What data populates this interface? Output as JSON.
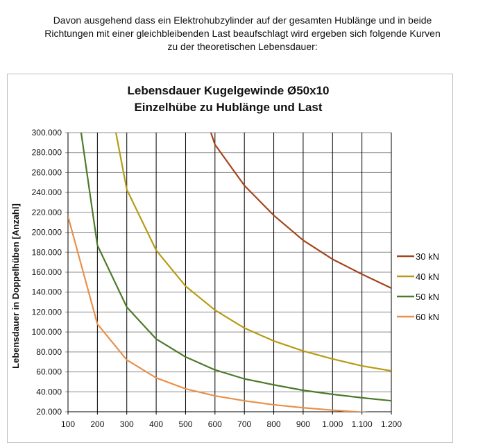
{
  "intro": {
    "lines": [
      "Davon ausgehend dass ein Elektrohubzylinder auf der gesamten Hublänge und in beide",
      "Richtungen mit einer gleichbleibenden Last beaufschlagt wird ergeben sich folgende Kurven",
      "zu der theoretischen Lebensdauer:"
    ]
  },
  "chart_data": {
    "type": "line",
    "title": [
      "Lebensdauer Kugelgewinde Ø50x10",
      "Einzelhübe zu Hublänge und Last"
    ],
    "ylabel": "Lebensdauer in Doppelhüben [Anzahl]",
    "xlabel": "",
    "xlim": [
      100,
      1200
    ],
    "ylim": [
      20000,
      300000
    ],
    "x_ticks": [
      100,
      200,
      300,
      400,
      500,
      600,
      700,
      800,
      900,
      1000,
      1100,
      1200
    ],
    "x_tick_labels": [
      "100",
      "200",
      "300",
      "400",
      "500",
      "600",
      "700",
      "800",
      "900",
      "1.000",
      "1.100",
      "1.200"
    ],
    "y_ticks": [
      20000,
      40000,
      60000,
      80000,
      100000,
      120000,
      140000,
      160000,
      180000,
      200000,
      220000,
      240000,
      260000,
      280000,
      300000
    ],
    "y_tick_labels": [
      "20.000",
      "40.000",
      "60.000",
      "80.000",
      "100.000",
      "120.000",
      "140.000",
      "160.000",
      "180.000",
      "200.000",
      "220.000",
      "240.000",
      "260.000",
      "280.000",
      "300.000"
    ],
    "grid": "vertical and horizontal",
    "legend_position": "right",
    "series": [
      {
        "name": "30 kN",
        "color": "#a3451c",
        "x": [
          600,
          700,
          800,
          900,
          1000,
          1100,
          1200
        ],
        "values": [
          288000,
          247000,
          217000,
          192000,
          173000,
          158000,
          144000
        ]
      },
      {
        "name": "40 kN",
        "color": "#b79b12",
        "x": [
          300,
          400,
          500,
          600,
          700,
          800,
          900,
          1000,
          1100,
          1200
        ],
        "values": [
          243000,
          182000,
          146000,
          122000,
          104000,
          91000,
          81000,
          73000,
          66000,
          61000
        ]
      },
      {
        "name": "50 kN",
        "color": "#4c7a2a",
        "x": [
          200,
          300,
          400,
          500,
          600,
          700,
          800,
          900,
          1000,
          1100,
          1200
        ],
        "values": [
          187000,
          125000,
          93000,
          75000,
          62000,
          53000,
          47000,
          41500,
          37500,
          34000,
          31000
        ]
      },
      {
        "name": "60 kN",
        "color": "#e9904a",
        "x": [
          100,
          200,
          300,
          400,
          500,
          600,
          700,
          800,
          900,
          1000,
          1100,
          1200
        ],
        "values": [
          216000,
          108000,
          72000,
          54000,
          43000,
          36000,
          31000,
          27000,
          24000,
          21600,
          19600,
          18000
        ]
      }
    ],
    "entry_segments": [
      {
        "series": "30 kN",
        "x": [
          540,
          600
        ],
        "values": [
          340000,
          288000
        ]
      },
      {
        "series": "40 kN",
        "x": [
          250,
          300
        ],
        "values": [
          320000,
          243000
        ]
      },
      {
        "series": "50 kN",
        "x": [
          130,
          200
        ],
        "values": [
          330000,
          187000
        ]
      }
    ]
  }
}
